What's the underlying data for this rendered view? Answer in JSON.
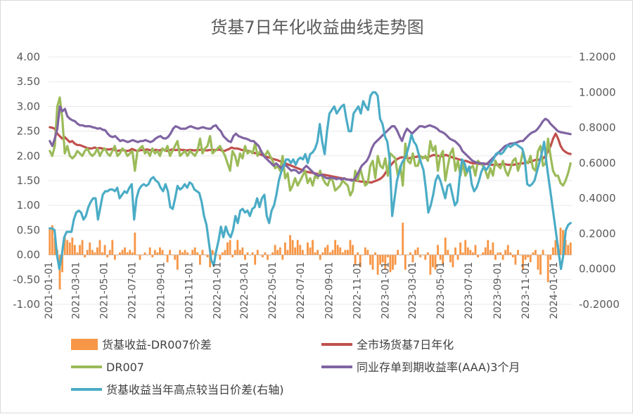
{
  "chart_data": {
    "type": "bar+line",
    "title": "货基7日年化收益曲线走势图",
    "y_left": {
      "ticks": [
        "4.00",
        "3.50",
        "3.00",
        "2.50",
        "2.00",
        "1.50",
        "1.00",
        "0.50",
        "0.00",
        "-0.50",
        "-1.00"
      ],
      "range": [
        -1,
        4
      ]
    },
    "y_right": {
      "ticks": [
        "1.2000",
        "1.0000",
        "0.8000",
        "0.6000",
        "0.4000",
        "0.2000",
        "0.0000",
        "-0.2000"
      ],
      "range": [
        -0.2,
        1.2
      ]
    },
    "x_ticks": [
      "2021-01-01",
      "2021-03-01",
      "2021-05-01",
      "2021-07-01",
      "2021-09-01",
      "2021-11-01",
      "2022-01-01",
      "2022-03-01",
      "2022-05-01",
      "2022-07-01",
      "2022-09-01",
      "2022-11-01",
      "2023-01-01",
      "2023-03-01",
      "2023-05-01",
      "2023-07-01",
      "2023-09-01",
      "2023-11-01",
      "2024-01-01"
    ],
    "x_range": [
      "2021-01-01",
      "2024-02-10"
    ],
    "legend": [
      "货基收益-DR007价差",
      "全市场货基7日年化",
      "DR007",
      "同业存单到期收益率(AAA)3个月",
      "货基收益当年高点较当日价差(右轴)"
    ],
    "legend_position": "bottom",
    "series": [
      {
        "name": "货基收益-DR007价差",
        "type": "bar",
        "axis": "left",
        "color": "#F79646",
        "values": [
          0.55,
          0.6,
          0.35,
          0.1,
          -0.7,
          -0.35,
          0.35,
          0.3,
          0.25,
          0.35,
          0.2,
          0.05,
          0.2,
          0.3,
          -0.05,
          0.1,
          0.25,
          0.1,
          0.05,
          0.15,
          0.3,
          0.05,
          0.2,
          -0.05,
          0.1,
          0.3,
          -0.1,
          0.0,
          0.05,
          0.1,
          0.15,
          0.05,
          0.1,
          0.05,
          0.45,
          0.0,
          -0.1,
          0.0,
          0.05,
          0.0,
          0.15,
          -0.05,
          0.1,
          0.05,
          0.15,
          0.1,
          0.0,
          -0.15,
          0.1,
          0.0,
          -0.1,
          -0.3,
          0.1,
          0.05,
          0.1,
          0.05,
          0.0,
          0.1,
          0.15,
          0.05,
          -0.2,
          0.1,
          0.0,
          -0.05,
          -0.25,
          0.1,
          0.05,
          0.0,
          -0.1,
          0.05,
          0.1,
          0.25,
          0.3,
          -0.05,
          0.1,
          0.3,
          0.1,
          0.15,
          -0.1,
          0.05,
          0.0,
          0.05,
          -0.2,
          0.1,
          0.0,
          -0.05,
          0.05,
          -0.1,
          0.0,
          0.05,
          0.2,
          0.1,
          0.15,
          -0.1,
          0.25,
          0.1,
          0.4,
          0.3,
          0.15,
          0.3,
          0.2,
          0.1,
          0.0,
          0.25,
          0.15,
          0.3,
          0.05,
          0.1,
          -0.1,
          0.05,
          0.15,
          0.2,
          0.05,
          0.1,
          0.3,
          0.2,
          0.15,
          0.05,
          0.1,
          0.1,
          0.3,
          0.2,
          -0.2,
          0.05,
          -0.25,
          0.0,
          0.15,
          0.1,
          -0.2,
          -0.3,
          0.05,
          -0.4,
          -0.2,
          -0.15,
          -0.3,
          -0.05,
          -0.35,
          -0.3,
          -0.2,
          0.1,
          0.0,
          0.65,
          -0.3,
          0.0,
          0.05,
          -0.15,
          0.1,
          0.15,
          -0.05,
          0.0,
          -0.1,
          0.05,
          -0.4,
          -0.25,
          -0.3,
          0.2,
          -0.1,
          -0.2,
          0.35,
          0.1,
          -0.15,
          -0.25,
          0.15,
          -0.1,
          0.25,
          0.05,
          0.3,
          0.15,
          0.1,
          0.05,
          0.2,
          -0.05,
          0.0,
          0.05,
          0.15,
          0.3,
          0.1,
          0.25,
          -0.1,
          0.05,
          0.05,
          -0.1,
          0.1,
          0.2,
          0.05,
          -0.05,
          -0.2,
          0.1,
          0.0,
          -0.3,
          -0.1,
          -0.05,
          -0.15,
          0.05,
          0.1,
          -0.3,
          -0.4,
          0.1,
          0.0,
          -0.55,
          -0.1,
          0.15,
          0.3,
          0.2,
          0.55,
          0.5,
          0.3,
          0.2,
          0.25
        ]
      },
      {
        "name": "全市场货基7日年化",
        "type": "line",
        "axis": "left",
        "color": "#C0504D",
        "values": [
          2.58,
          2.57,
          2.55,
          2.45,
          2.4,
          2.35,
          2.38,
          2.33,
          2.28,
          2.3,
          2.25,
          2.22,
          2.22,
          2.2,
          2.18,
          2.16,
          2.15,
          2.15,
          2.17,
          2.15,
          2.16,
          2.15,
          2.14,
          2.13,
          2.13,
          2.14,
          2.12,
          2.1,
          2.11,
          2.12,
          2.11,
          2.1,
          2.11,
          2.14,
          2.12,
          2.1,
          2.11,
          2.12,
          2.12,
          2.13,
          2.12,
          2.11,
          2.12,
          2.12,
          2.11,
          2.13,
          2.12,
          2.1,
          2.11,
          2.13,
          2.12,
          2.12,
          2.13,
          2.12,
          2.12,
          2.11,
          2.12,
          2.12,
          2.11,
          2.12,
          2.12,
          2.13,
          2.12,
          2.11,
          2.12,
          2.12,
          2.12,
          2.12,
          2.13,
          2.11,
          2.1,
          2.12,
          2.14,
          2.17,
          2.15,
          2.15,
          2.14,
          2.12,
          2.12,
          2.1,
          2.1,
          2.08,
          2.06,
          2.05,
          2.04,
          2.02,
          2.0,
          1.98,
          1.97,
          1.95,
          1.93,
          1.92,
          1.9,
          1.88,
          1.86,
          1.84,
          1.82,
          1.8,
          1.78,
          1.76,
          1.74,
          1.72,
          1.7,
          1.68,
          1.67,
          1.66,
          1.65,
          1.64,
          1.63,
          1.62,
          1.62,
          1.61,
          1.6,
          1.59,
          1.58,
          1.57,
          1.56,
          1.55,
          1.54,
          1.53,
          1.52,
          1.52,
          1.51,
          1.5,
          1.49,
          1.48,
          1.48,
          1.47,
          1.47,
          1.46,
          1.48,
          1.5,
          1.52,
          1.55,
          1.6,
          1.68,
          1.75,
          1.82,
          1.88,
          1.92,
          1.95,
          1.97,
          1.97,
          1.96,
          1.95,
          1.96,
          1.97,
          1.98,
          1.99,
          1.98,
          1.97,
          1.96,
          1.98,
          2.0,
          2.02,
          2.01,
          2.0,
          1.99,
          2.0,
          2.02,
          2.0,
          1.98,
          1.96,
          1.95,
          1.93,
          1.92,
          1.9,
          1.9,
          1.88,
          1.86,
          1.85,
          1.85,
          1.84,
          1.84,
          1.85,
          1.84,
          1.83,
          1.82,
          1.82,
          1.82,
          1.82,
          1.83,
          1.84,
          1.83,
          1.82,
          1.82,
          1.82,
          1.83,
          1.84,
          1.85,
          1.85,
          1.86,
          1.87,
          1.88,
          1.9,
          1.92,
          1.92,
          1.93,
          1.95,
          2.0,
          2.1,
          2.2,
          2.35,
          2.45,
          2.35,
          2.2,
          2.12,
          2.08,
          2.05,
          2.04
        ]
      },
      {
        "name": "DR007",
        "type": "line",
        "axis": "left",
        "color": "#9BBB59",
        "values": [
          2.1,
          2.0,
          2.2,
          3.0,
          3.18,
          2.75,
          2.05,
          2.2,
          2.0,
          1.95,
          2.0,
          2.1,
          2.05,
          2.0,
          2.1,
          2.15,
          2.05,
          2.0,
          2.05,
          2.15,
          2.0,
          2.1,
          2.15,
          2.05,
          2.0,
          2.1,
          2.2,
          2.0,
          2.05,
          2.15,
          2.1,
          2.0,
          2.05,
          2.1,
          1.7,
          2.1,
          2.15,
          2.2,
          2.05,
          2.1,
          2.0,
          2.15,
          2.05,
          2.1,
          2.0,
          2.15,
          2.1,
          2.2,
          2.0,
          2.1,
          2.2,
          2.3,
          2.0,
          2.05,
          2.1,
          2.0,
          2.1,
          2.05,
          2.0,
          2.1,
          2.35,
          2.05,
          2.15,
          2.2,
          2.4,
          2.05,
          2.1,
          2.15,
          2.2,
          2.1,
          2.0,
          1.85,
          1.7,
          2.1,
          2.0,
          1.8,
          2.05,
          1.95,
          2.2,
          2.05,
          2.1,
          2.05,
          2.25,
          2.0,
          2.1,
          2.05,
          2.0,
          2.1,
          2.0,
          1.9,
          1.75,
          1.8,
          1.7,
          2.0,
          1.55,
          1.65,
          1.3,
          1.4,
          1.55,
          1.4,
          1.5,
          1.6,
          1.7,
          1.45,
          1.55,
          1.4,
          1.6,
          1.55,
          1.7,
          1.55,
          1.45,
          1.4,
          1.55,
          1.5,
          1.3,
          1.35,
          1.4,
          1.5,
          1.45,
          1.4,
          1.2,
          1.3,
          1.7,
          1.5,
          1.75,
          1.55,
          1.4,
          1.45,
          1.8,
          1.9,
          1.55,
          2.0,
          1.8,
          1.75,
          1.95,
          1.6,
          2.05,
          2.0,
          1.95,
          1.6,
          1.8,
          1.4,
          2.25,
          1.9,
          1.85,
          2.05,
          1.8,
          1.8,
          2.0,
          1.95,
          2.0,
          1.9,
          2.3,
          2.1,
          2.2,
          1.7,
          2.0,
          2.1,
          1.5,
          1.8,
          2.05,
          2.15,
          1.7,
          1.9,
          1.6,
          1.85,
          1.6,
          1.7,
          1.75,
          1.8,
          1.6,
          1.9,
          1.85,
          1.8,
          1.7,
          1.55,
          1.75,
          1.6,
          1.9,
          1.8,
          1.75,
          1.9,
          1.7,
          1.6,
          1.75,
          1.9,
          1.95,
          1.7,
          1.85,
          2.1,
          1.9,
          1.85,
          2.0,
          1.75,
          1.7,
          2.1,
          2.2,
          1.8,
          1.85,
          2.35,
          2.0,
          1.7,
          1.6,
          1.6,
          1.45,
          1.4,
          1.5,
          1.65,
          1.85
        ]
      },
      {
        "name": "同业存单到期收益率(AAA)3个月",
        "type": "line",
        "axis": "left",
        "color": "#8064A2",
        "values": [
          2.3,
          2.2,
          2.35,
          2.55,
          3.0,
          2.9,
          2.95,
          2.8,
          2.75,
          2.72,
          2.7,
          2.65,
          2.62,
          2.62,
          2.6,
          2.6,
          2.6,
          2.58,
          2.57,
          2.55,
          2.56,
          2.53,
          2.52,
          2.45,
          2.4,
          2.38,
          2.4,
          2.35,
          2.3,
          2.32,
          2.3,
          2.28,
          2.3,
          2.32,
          2.3,
          2.28,
          2.3,
          2.3,
          2.32,
          2.3,
          2.28,
          2.3,
          2.35,
          2.38,
          2.4,
          2.36,
          2.35,
          2.38,
          2.45,
          2.55,
          2.6,
          2.58,
          2.55,
          2.55,
          2.55,
          2.58,
          2.6,
          2.58,
          2.56,
          2.55,
          2.57,
          2.58,
          2.56,
          2.55,
          2.55,
          2.6,
          2.62,
          2.55,
          2.5,
          2.4,
          2.35,
          2.3,
          2.28,
          2.4,
          2.45,
          2.4,
          2.38,
          2.36,
          2.35,
          2.33,
          2.3,
          2.3,
          2.25,
          2.2,
          2.1,
          2.0,
          1.95,
          1.9,
          1.85,
          1.8,
          1.85,
          1.8,
          1.75,
          1.82,
          1.8,
          1.75,
          1.7,
          1.72,
          1.7,
          1.65,
          1.68,
          1.75,
          1.8,
          1.75,
          1.7,
          1.65,
          1.62,
          1.6,
          1.62,
          1.58,
          1.55,
          1.55,
          1.56,
          1.55,
          1.53,
          1.55,
          1.52,
          1.55,
          1.52,
          1.52,
          1.5,
          1.52,
          1.6,
          1.7,
          1.8,
          1.85,
          1.9,
          2.0,
          2.15,
          2.25,
          2.3,
          2.35,
          2.4,
          2.45,
          2.5,
          2.55,
          2.6,
          2.6,
          2.52,
          2.4,
          2.3,
          2.45,
          2.55,
          2.5,
          2.45,
          2.5,
          2.55,
          2.6,
          2.6,
          2.58,
          2.6,
          2.62,
          2.6,
          2.58,
          2.55,
          2.5,
          2.48,
          2.45,
          2.4,
          2.35,
          2.32,
          2.3,
          2.25,
          2.2,
          2.1,
          2.05,
          2.0,
          1.95,
          1.9,
          1.88,
          1.86,
          1.85,
          1.85,
          1.83,
          1.85,
          1.9,
          1.95,
          2.0,
          2.05,
          2.1,
          2.15,
          2.2,
          2.22,
          2.25,
          2.25,
          2.26,
          2.28,
          2.3,
          2.3,
          2.35,
          2.4,
          2.45,
          2.48,
          2.5,
          2.55,
          2.62,
          2.7,
          2.75,
          2.72,
          2.65,
          2.6,
          2.55,
          2.5,
          2.48,
          2.47,
          2.46,
          2.45,
          2.44
        ]
      },
      {
        "name": "货基收益当年高点较当日价差(右轴)",
        "type": "line",
        "axis": "right",
        "color": "#4BACC6",
        "values": [
          0.23,
          0.23,
          0.22,
          0.08,
          0.0,
          0.08,
          0.18,
          0.21,
          0.21,
          0.21,
          0.28,
          0.32,
          0.33,
          0.32,
          0.28,
          0.3,
          0.35,
          0.38,
          0.4,
          0.4,
          0.28,
          0.35,
          0.42,
          0.44,
          0.44,
          0.45,
          0.45,
          0.44,
          0.46,
          0.4,
          0.42,
          0.44,
          0.43,
          0.46,
          0.48,
          0.28,
          0.4,
          0.45,
          0.47,
          0.48,
          0.47,
          0.48,
          0.51,
          0.52,
          0.5,
          0.49,
          0.46,
          0.44,
          0.48,
          0.44,
          0.35,
          0.34,
          0.4,
          0.47,
          0.45,
          0.46,
          0.48,
          0.46,
          0.49,
          0.48,
          0.45,
          0.44,
          0.43,
          0.38,
          0.3,
          0.25,
          0.15,
          0.05,
          0.02,
          0.1,
          0.16,
          0.24,
          0.18,
          0.24,
          0.2,
          0.18,
          0.22,
          0.3,
          0.26,
          0.33,
          0.34,
          0.32,
          0.33,
          0.3,
          0.34,
          0.35,
          0.4,
          0.35,
          0.4,
          0.42,
          0.3,
          0.26,
          0.33,
          0.36,
          0.42,
          0.5,
          0.55,
          0.58,
          0.62,
          0.62,
          0.6,
          0.62,
          0.59,
          0.62,
          0.63,
          0.62,
          0.65,
          0.6,
          0.65,
          0.66,
          0.68,
          0.72,
          0.82,
          0.72,
          0.65,
          0.78,
          0.88,
          0.9,
          0.92,
          0.88,
          0.9,
          0.92,
          0.93,
          0.85,
          0.78,
          0.78,
          0.88,
          0.9,
          0.92,
          0.88,
          0.95,
          0.92,
          0.9,
          0.98,
          1.0,
          1.0,
          0.98,
          0.85,
          0.82,
          0.75,
          0.72,
          0.62,
          0.3,
          0.4,
          0.5,
          0.55,
          0.6,
          0.62,
          0.65,
          0.7,
          0.76,
          0.72,
          0.7,
          0.65,
          0.6,
          0.56,
          0.45,
          0.32,
          0.36,
          0.42,
          0.5,
          0.53,
          0.5,
          0.45,
          0.4,
          0.47,
          0.48,
          0.42,
          0.36,
          0.38,
          0.52,
          0.62,
          0.6,
          0.55,
          0.58,
          0.48,
          0.44,
          0.46,
          0.5,
          0.55,
          0.58,
          0.56,
          0.58,
          0.6,
          0.62,
          0.65,
          0.66,
          0.65,
          0.66,
          0.68,
          0.7,
          0.69,
          0.7,
          0.71,
          0.7,
          0.69,
          0.68,
          0.62,
          0.48,
          0.47,
          0.48,
          0.5,
          0.55,
          0.6,
          0.65,
          0.72,
          0.6,
          0.5,
          0.4,
          0.3,
          0.2,
          0.1,
          0.0,
          0.08,
          0.22,
          0.25,
          0.26
        ]
      }
    ]
  }
}
